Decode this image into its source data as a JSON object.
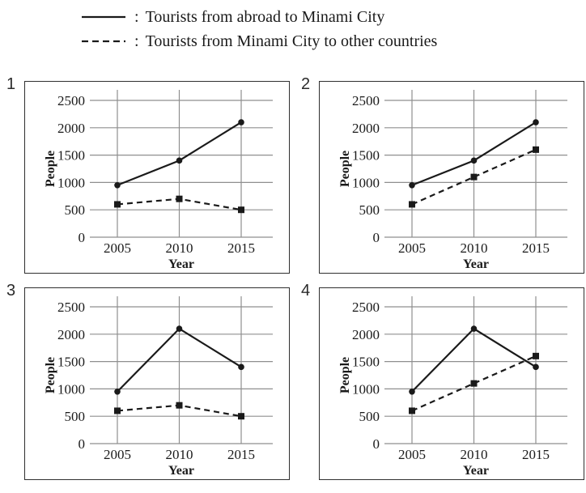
{
  "colors": {
    "line": "#1a1a1a",
    "grid": "#8f8f8f",
    "border": "#2f2f2f",
    "background": "#ffffff"
  },
  "legend": {
    "separator": ":",
    "items": [
      {
        "style": "solid",
        "label": "Tourists from abroad to Minami City"
      },
      {
        "style": "dashed",
        "label": "Tourists from Minami City to other countries"
      }
    ]
  },
  "chart_data": [
    {
      "type": "line",
      "panel": "1",
      "categories": [
        "2005",
        "2010",
        "2015"
      ],
      "series": [
        {
          "name": "Tourists from abroad to Minami City",
          "style": "solid",
          "marker": "circle",
          "values": [
            950,
            1400,
            2100
          ]
        },
        {
          "name": "Tourists from Minami City to other countries",
          "style": "dashed",
          "marker": "square",
          "values": [
            600,
            700,
            500
          ]
        }
      ],
      "xlabel": "Year",
      "ylabel": "People",
      "ylim": [
        0,
        2500
      ],
      "yticks": [
        0,
        500,
        1000,
        1500,
        2000,
        2500
      ],
      "grid": true,
      "legend_position": "none"
    },
    {
      "type": "line",
      "panel": "2",
      "categories": [
        "2005",
        "2010",
        "2015"
      ],
      "series": [
        {
          "name": "Tourists from abroad to Minami City",
          "style": "solid",
          "marker": "circle",
          "values": [
            950,
            1400,
            2100
          ]
        },
        {
          "name": "Tourists from Minami City to other countries",
          "style": "dashed",
          "marker": "square",
          "values": [
            600,
            1100,
            1600
          ]
        }
      ],
      "xlabel": "Year",
      "ylabel": "People",
      "ylim": [
        0,
        2500
      ],
      "yticks": [
        0,
        500,
        1000,
        1500,
        2000,
        2500
      ],
      "grid": true,
      "legend_position": "none"
    },
    {
      "type": "line",
      "panel": "3",
      "categories": [
        "2005",
        "2010",
        "2015"
      ],
      "series": [
        {
          "name": "Tourists from abroad to Minami City",
          "style": "solid",
          "marker": "circle",
          "values": [
            950,
            2100,
            1400
          ]
        },
        {
          "name": "Tourists from Minami City to other countries",
          "style": "dashed",
          "marker": "square",
          "values": [
            600,
            700,
            500
          ]
        }
      ],
      "xlabel": "Year",
      "ylabel": "People",
      "ylim": [
        0,
        2500
      ],
      "yticks": [
        0,
        500,
        1000,
        1500,
        2000,
        2500
      ],
      "grid": true,
      "legend_position": "none"
    },
    {
      "type": "line",
      "panel": "4",
      "categories": [
        "2005",
        "2010",
        "2015"
      ],
      "series": [
        {
          "name": "Tourists from abroad to Minami City",
          "style": "solid",
          "marker": "circle",
          "values": [
            950,
            2100,
            1400
          ]
        },
        {
          "name": "Tourists from Minami City to other countries",
          "style": "dashed",
          "marker": "square",
          "values": [
            600,
            1100,
            1600
          ]
        }
      ],
      "xlabel": "Year",
      "ylabel": "People",
      "ylim": [
        0,
        2500
      ],
      "yticks": [
        0,
        500,
        1000,
        1500,
        2000,
        2500
      ],
      "grid": true,
      "legend_position": "none"
    }
  ]
}
